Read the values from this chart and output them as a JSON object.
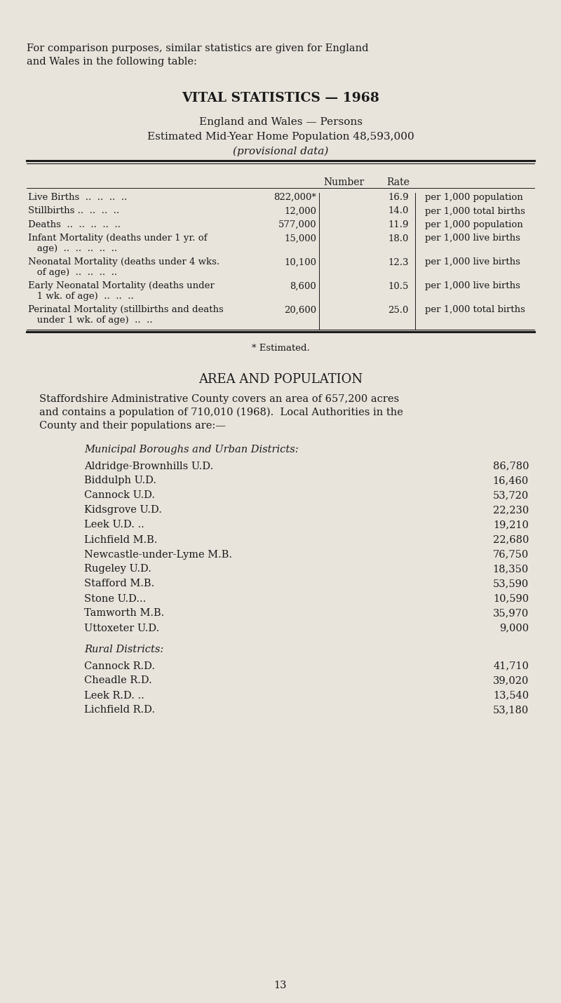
{
  "bg_color": "#e8e4dc",
  "text_color": "#1a1a1a",
  "page_number": "13",
  "intro_line1": "For comparison purposes, similar statistics are given for England",
  "intro_line2": "and Wales in the following table:",
  "section1_title": "VITAL STATISTICS — 1968",
  "section1_sub1": "England and Wales — Persons",
  "section1_sub2": "Estimated Mid-Year Home Population 48,593,000",
  "section1_sub3": "(provisional data)",
  "table_rows": [
    [
      "Live Births  ..  ..  ..  ..",
      "822,000*",
      "16.9",
      "per 1,000 population"
    ],
    [
      "Stillbirths ..  ..  ..  ..",
      "12,000",
      "14.0",
      "per 1,000 total births"
    ],
    [
      "Deaths  ..  ..  ..  ..  ..",
      "577,000",
      "11.9",
      "per 1,000 population"
    ],
    [
      "Infant Mortality (deaths under 1 yr. of\n   age)  ..  ..  ..  ..  ..",
      "15,000",
      "18.0",
      "per 1,000 live births"
    ],
    [
      "Neonatal Mortality (deaths under 4 wks.\n   of age)  ..  ..  ..  ..",
      "10,100",
      "12.3",
      "per 1,000 live births"
    ],
    [
      "Early Neonatal Mortality (deaths under\n   1 wk. of age)  ..  ..  ..",
      "8,600",
      "10.5",
      "per 1,000 live births"
    ],
    [
      "Perinatal Mortality (stillbirths and deaths\n   under 1 wk. of age)  ..  ..",
      "20,600",
      "25.0",
      "per 1,000 total births"
    ]
  ],
  "footnote": "* Estimated.",
  "section2_title": "AREA AND POPULATION",
  "section2_para": [
    "Staffordshire Administrative County covers an area of 657,200 acres",
    "and contains a population of 710,010 (1968).  Local Authorities in the",
    "County and their populations are:—"
  ],
  "municipal_header": "Municipal Boroughs and Urban Districts:",
  "municipal_entries": [
    [
      "Aldridge-Brownhills U.D.",
      "86,780"
    ],
    [
      "Biddulph U.D.",
      "16,460"
    ],
    [
      "Cannock U.D.",
      "53,720"
    ],
    [
      "Kidsgrove U.D.",
      "22,230"
    ],
    [
      "Leek U.D. ..",
      "19,210"
    ],
    [
      "Lichfield M.B.",
      "22,680"
    ],
    [
      "Newcastle-under-Lyme M.B.",
      "76,750"
    ],
    [
      "Rugeley U.D.",
      "18,350"
    ],
    [
      "Stafford M.B.",
      "53,590"
    ],
    [
      "Stone U.D...",
      "10,590"
    ],
    [
      "Tamworth M.B.",
      "35,970"
    ],
    [
      "Uttoxeter U.D.",
      "9,000"
    ]
  ],
  "rural_header": "Rural Districts:",
  "rural_entries": [
    [
      "Cannock R.D.",
      "41,710"
    ],
    [
      "Cheadle R.D.",
      "39,020"
    ],
    [
      "Leek R.D. ..",
      "13,540"
    ],
    [
      "Lichfield R.D.",
      "53,180"
    ]
  ]
}
